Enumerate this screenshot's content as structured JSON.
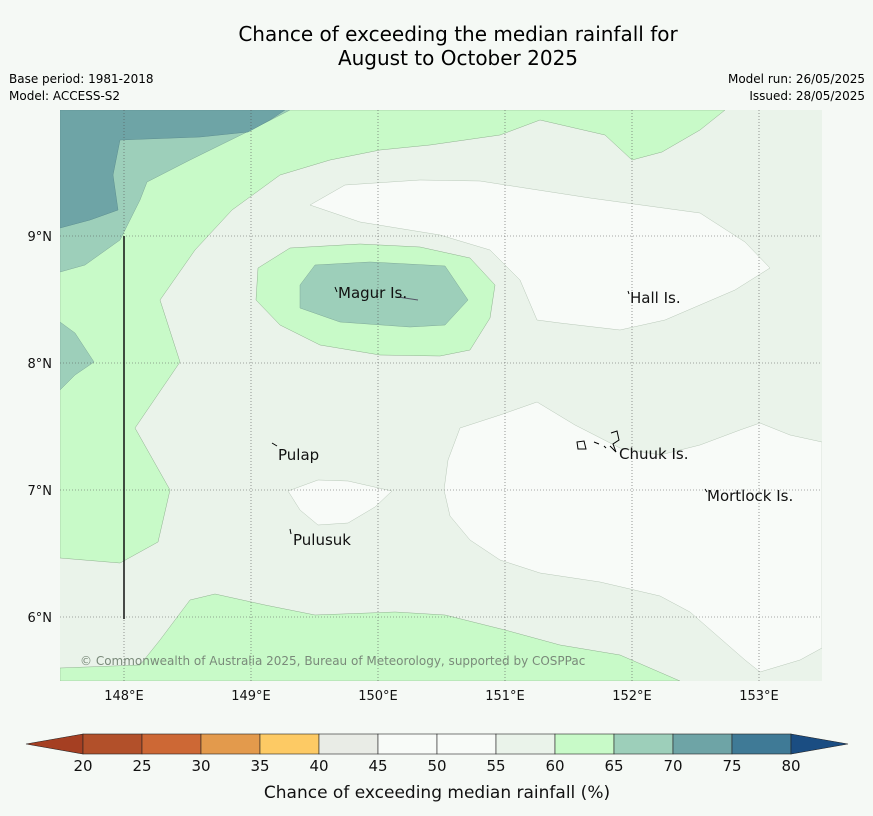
{
  "title": {
    "line1": "Chance of exceeding the median rainfall for",
    "line2": "August to October 2025"
  },
  "meta": {
    "base_period": "Base period: 1981-2018",
    "model": "Model: ACCESS-S2",
    "model_run": "Model run: 26/05/2025",
    "issued": "Issued: 28/05/2025"
  },
  "map": {
    "lon_ticks": [
      "148°E",
      "149°E",
      "150°E",
      "151°E",
      "152°E",
      "153°E"
    ],
    "lat_ticks": [
      "9°N",
      "8°N",
      "7°N",
      "6°N"
    ],
    "places": [
      "Magur Is.",
      "Hall Is.",
      "Pulap",
      "Chuuk Is.",
      "Mortlock Is.",
      "Pulusuk"
    ],
    "copyright": "© Commonwealth of Australia 2025, Bureau of Meteorology, supported by COSPPac"
  },
  "colorbar": {
    "tick_labels": [
      "20",
      "25",
      "30",
      "35",
      "40",
      "45",
      "50",
      "55",
      "60",
      "65",
      "70",
      "75",
      "80"
    ],
    "label": "Chance of exceeding median rainfall (%)",
    "colors": [
      "#a53f22",
      "#b2502a",
      "#cd6835",
      "#e39a4c",
      "#fdca64",
      "#e9ece6",
      "#f8fbf8",
      "#f8fbf8",
      "#eaf3ea",
      "#c8fac8",
      "#9dcfba",
      "#6ea4a6",
      "#3f7a96",
      "#1a4d82"
    ]
  }
}
